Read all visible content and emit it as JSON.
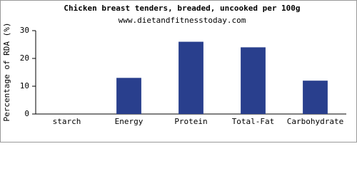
{
  "chart_data": {
    "type": "bar",
    "title": "Chicken breast tenders, breaded, uncooked per 100g",
    "subtitle": "www.dietandfitnesstoday.com",
    "y_label": "Percentage of RDA (%)",
    "categories": [
      "starch",
      "Energy",
      "Protein",
      "Total-Fat",
      "Carbohydrate"
    ],
    "values": [
      0,
      13,
      26,
      24,
      12
    ],
    "color": "#293f8d",
    "ylim": [
      0,
      30
    ],
    "yticks": [
      0,
      10,
      20,
      30
    ]
  }
}
